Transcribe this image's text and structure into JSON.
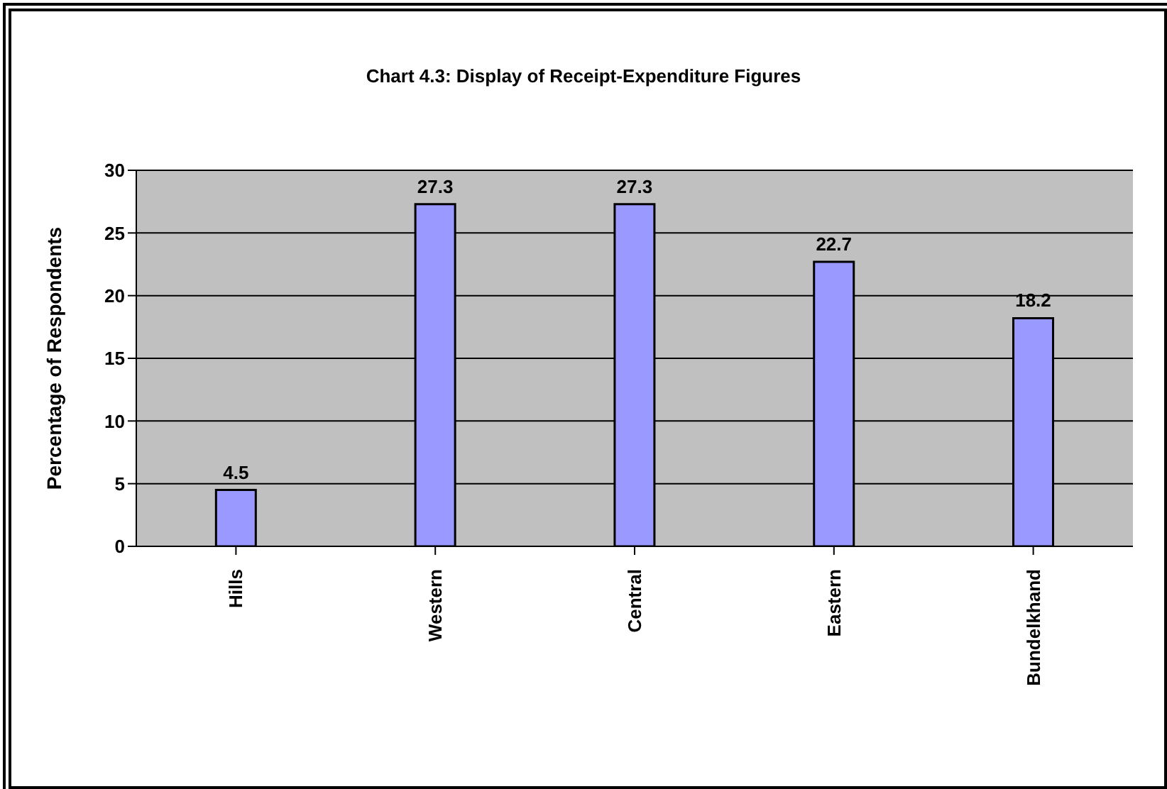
{
  "chart_data": {
    "type": "bar",
    "title": "Chart 4.3: Display of Receipt-Expenditure Figures",
    "ylabel": "Percentage of Respondents",
    "categories": [
      "Hills",
      "Western",
      "Central",
      "Eastern",
      "Bundelkhand"
    ],
    "values": [
      4.5,
      27.3,
      27.3,
      22.7,
      18.2
    ],
    "color": "#9999ff",
    "ylim": [
      0,
      30
    ],
    "yticks": [
      0,
      5,
      10,
      15,
      20,
      25,
      30
    ],
    "grid": "y",
    "data_labels": true
  }
}
